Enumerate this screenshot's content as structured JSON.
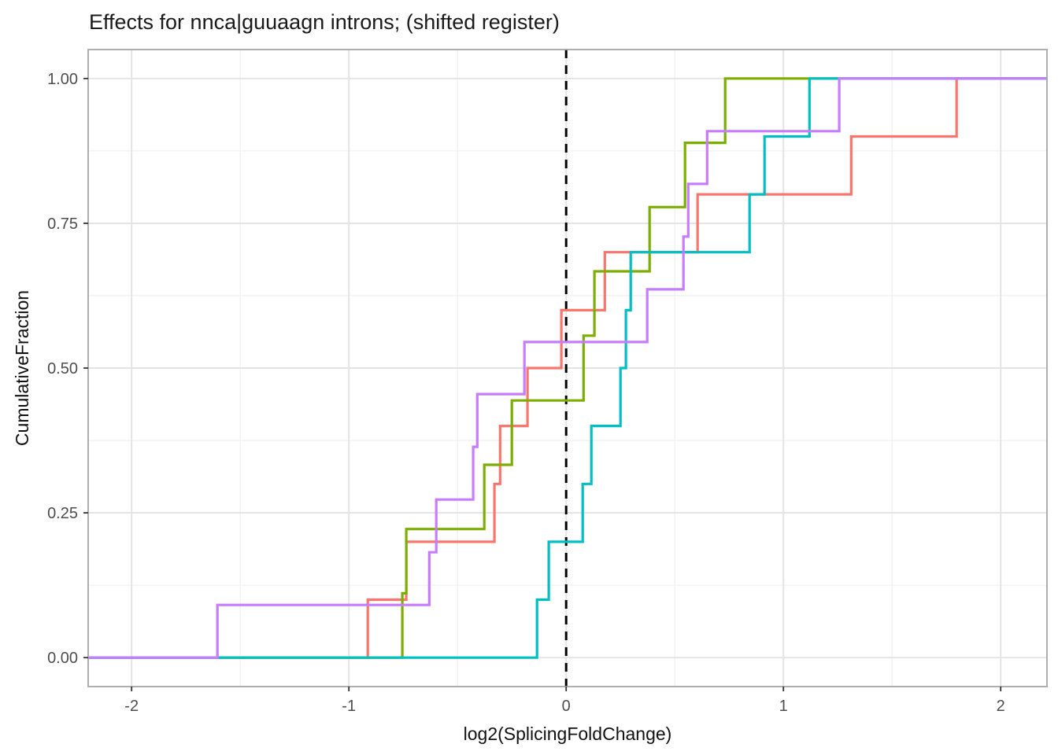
{
  "chart_data": {
    "type": "line",
    "subtype": "step-ecdf",
    "title": "Effects for nnca|guuaagn introns; (shifted register)",
    "xlabel": "log2(SplicingFoldChange)",
    "ylabel": "CumulativeFraction",
    "xlim": [
      -2.2,
      2.213
    ],
    "ylim": [
      -0.05,
      1.05
    ],
    "x_tick_values": [
      -2,
      -1,
      0,
      1,
      2
    ],
    "x_tick_labels": [
      "-2",
      "-1",
      "0",
      "1",
      "2"
    ],
    "y_tick_values": [
      0,
      0.25,
      0.5,
      0.75,
      1
    ],
    "y_tick_labels": [
      "0.00",
      "0.25",
      "0.50",
      "0.75",
      "1.00"
    ],
    "x_minor_ticks": [
      -1.5,
      -0.5,
      0.5,
      1.5
    ],
    "y_minor_ticks": [
      0.125,
      0.375,
      0.625,
      0.875
    ],
    "grid": true,
    "legend_position": "none",
    "vline": {
      "x": 0,
      "style": "dashed",
      "color": "#000000"
    },
    "colors": {
      "salmon": "#F8766D",
      "green": "#7CAE00",
      "teal": "#00BFC4",
      "purple": "#C77CFF",
      "grid_major": "#E3E3E3",
      "grid_minor": "#F1F1F1",
      "panel_border": "#A5A5A5",
      "tick_mark": "#333333"
    },
    "series": [
      {
        "name": "series-salmon",
        "color": "#F8766D",
        "points": [
          [
            -0.913,
            0.1
          ],
          [
            -0.736,
            0.2
          ],
          [
            -0.33,
            0.3
          ],
          [
            -0.304,
            0.4
          ],
          [
            -0.178,
            0.5
          ],
          [
            -0.022,
            0.6
          ],
          [
            0.178,
            0.7
          ],
          [
            0.605,
            0.8
          ],
          [
            1.312,
            0.9
          ],
          [
            1.797,
            1.0
          ]
        ]
      },
      {
        "name": "series-green",
        "color": "#7CAE00",
        "points": [
          [
            -0.754,
            0.111
          ],
          [
            -0.736,
            0.222
          ],
          [
            -0.377,
            0.333
          ],
          [
            -0.25,
            0.444
          ],
          [
            0.08,
            0.556
          ],
          [
            0.13,
            0.667
          ],
          [
            0.384,
            0.778
          ],
          [
            0.547,
            0.889
          ],
          [
            0.732,
            1.0
          ]
        ]
      },
      {
        "name": "series-teal",
        "color": "#00BFC4",
        "points": [
          [
            -0.134,
            0.1
          ],
          [
            -0.08,
            0.2
          ],
          [
            0.076,
            0.3
          ],
          [
            0.116,
            0.4
          ],
          [
            0.25,
            0.5
          ],
          [
            0.275,
            0.6
          ],
          [
            0.297,
            0.7
          ],
          [
            0.844,
            0.8
          ],
          [
            0.913,
            0.9
          ],
          [
            1.12,
            1.0
          ]
        ]
      },
      {
        "name": "series-purple",
        "color": "#C77CFF",
        "points": [
          [
            -1.605,
            0.091
          ],
          [
            -0.63,
            0.182
          ],
          [
            -0.598,
            0.273
          ],
          [
            -0.428,
            0.364
          ],
          [
            -0.409,
            0.455
          ],
          [
            -0.192,
            0.545
          ],
          [
            0.373,
            0.636
          ],
          [
            0.54,
            0.727
          ],
          [
            0.562,
            0.818
          ],
          [
            0.649,
            0.909
          ],
          [
            1.257,
            1.0
          ]
        ]
      }
    ]
  }
}
